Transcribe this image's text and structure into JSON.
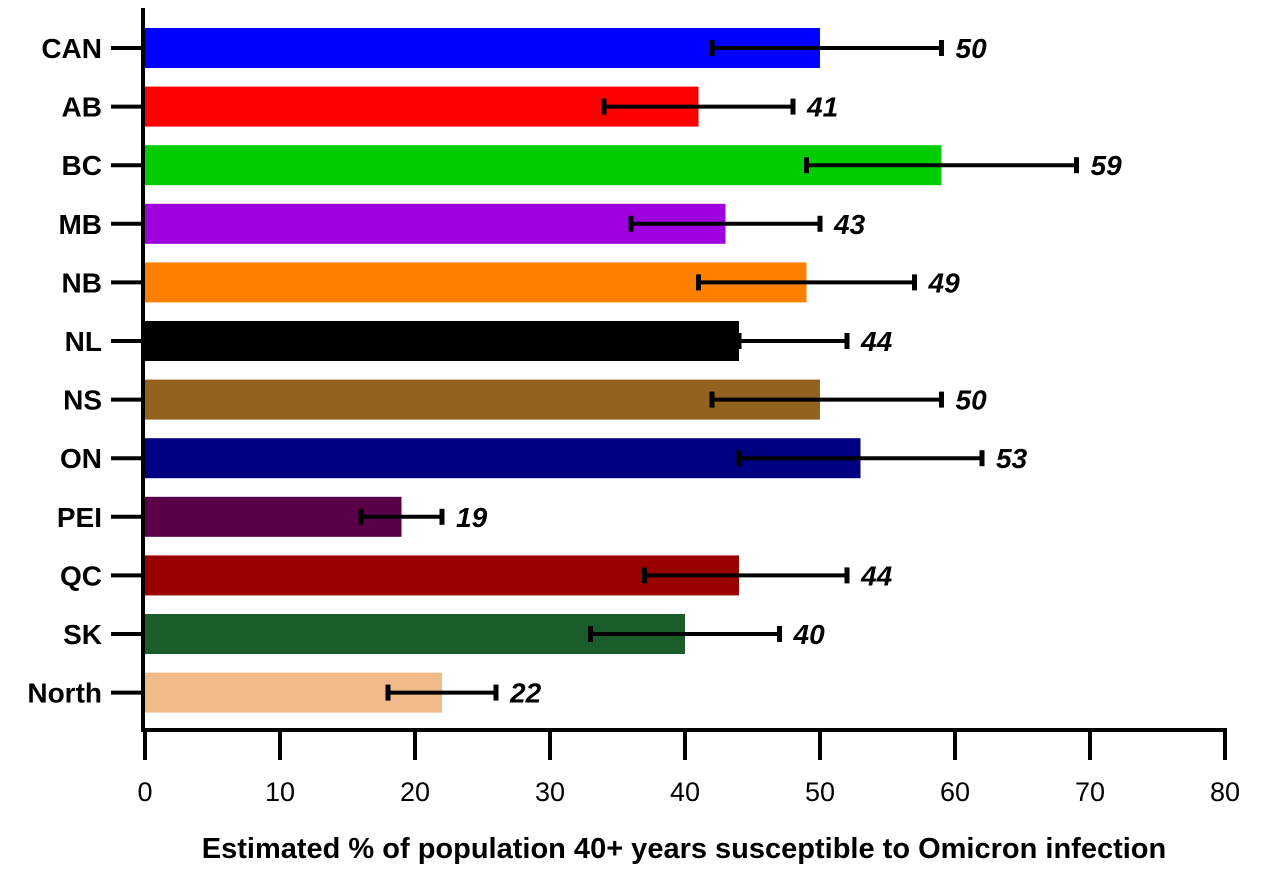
{
  "chart_data": {
    "type": "bar",
    "orientation": "horizontal",
    "categories": [
      "CAN",
      "AB",
      "BC",
      "MB",
      "NB",
      "NL",
      "NS",
      "ON",
      "PEI",
      "QC",
      "SK",
      "North"
    ],
    "values": [
      50,
      41,
      59,
      43,
      49,
      44,
      50,
      53,
      19,
      44,
      40,
      22
    ],
    "error_low": [
      42,
      34,
      49,
      36,
      41,
      44,
      42,
      44,
      16,
      37,
      33,
      18
    ],
    "error_high": [
      59,
      48,
      69,
      50,
      57,
      52,
      59,
      62,
      22,
      52,
      47,
      26
    ],
    "value_labels": [
      "50",
      "41",
      "59",
      "43",
      "49",
      "44",
      "50",
      "53",
      "19",
      "44",
      "40",
      "22"
    ],
    "colors": [
      "#0000FF",
      "#FF0000",
      "#00CC00",
      "#A000E0",
      "#FF8000",
      "#000000",
      "#93621F",
      "#000080",
      "#5A0048",
      "#990000",
      "#1A5C2A",
      "#F0BB88"
    ],
    "xlim": [
      0,
      80
    ],
    "xticks": [
      0,
      10,
      20,
      30,
      40,
      50,
      60,
      70,
      80
    ],
    "xlabel": "Estimated % of population 40+ years susceptible to Omicron infection",
    "ylabel": "",
    "title": "",
    "grid": false,
    "legend": "none"
  }
}
